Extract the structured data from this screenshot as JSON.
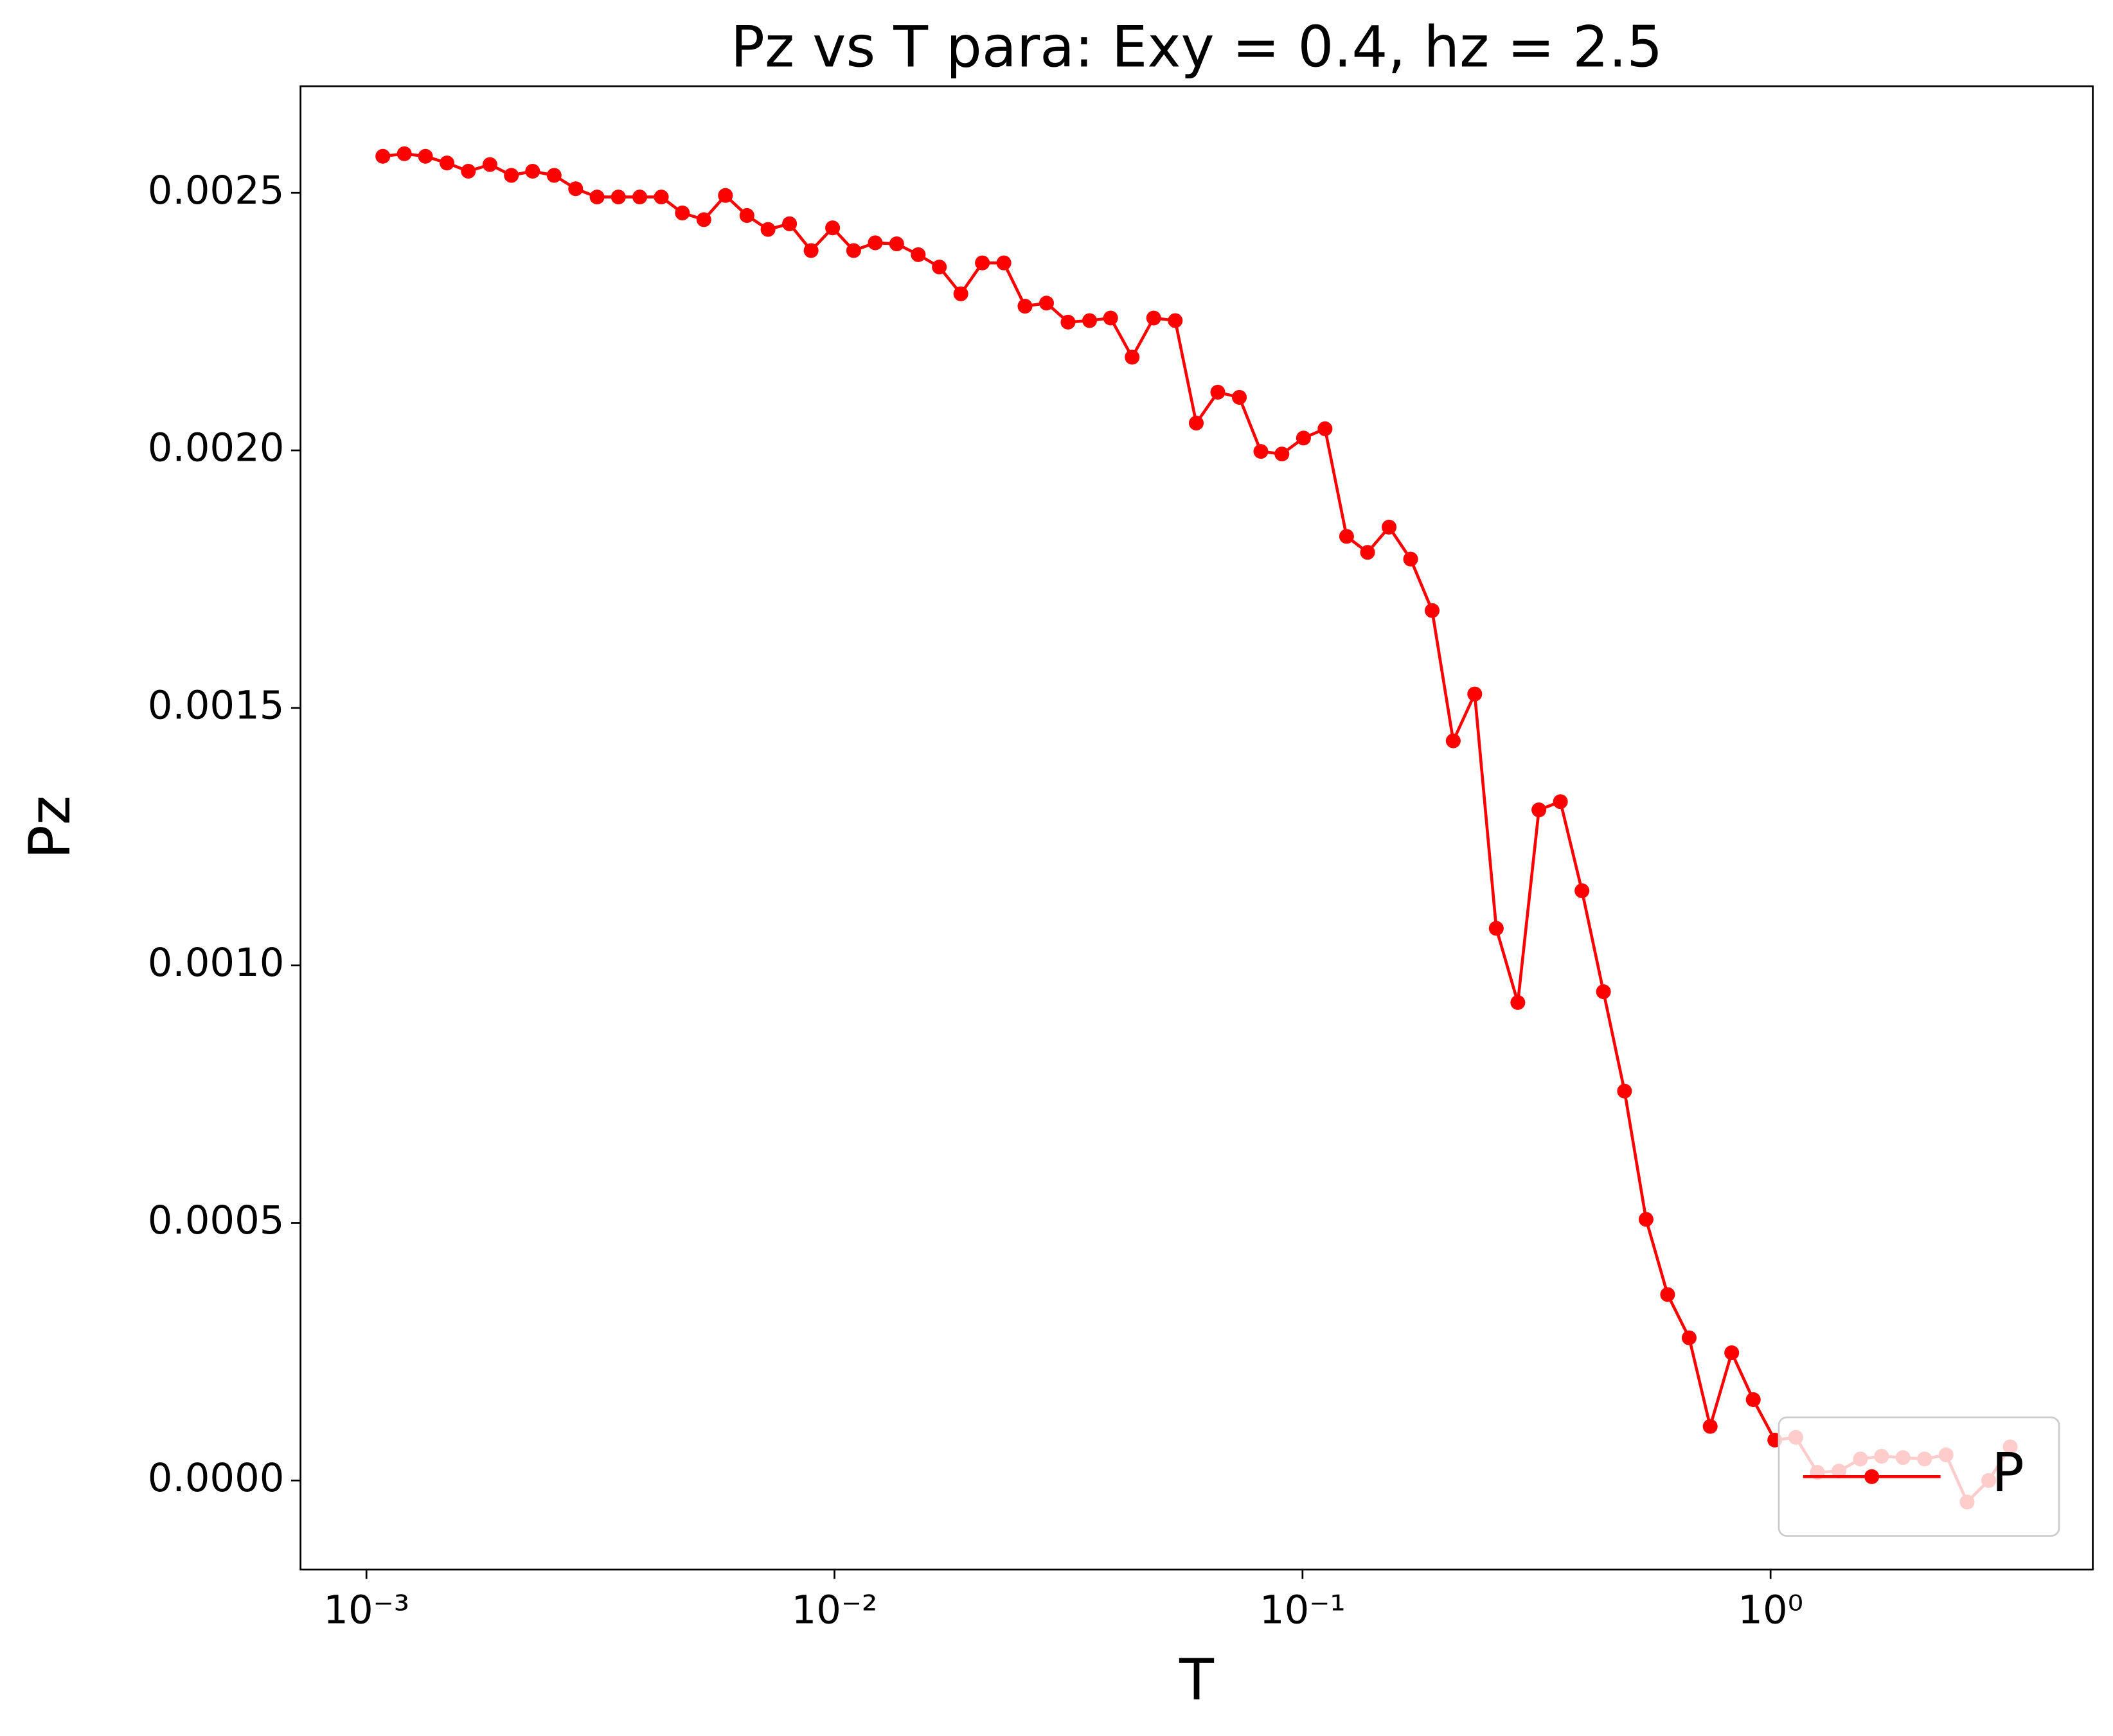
{
  "chart_data": {
    "type": "line",
    "title": "Pz vs T para: Exy = 0.4, hz = 2.5",
    "x_label": "T",
    "y_label": "Pz",
    "x_scale": "log",
    "legend": "lower right",
    "xlim": [
      0.000723,
      4.88
    ],
    "ylim": [
      -0.000173,
      0.002707
    ],
    "xticks": [
      {
        "value": 0.001,
        "label": "10⁻³"
      },
      {
        "value": 0.01,
        "label": "10⁻²"
      },
      {
        "value": 0.1,
        "label": "10⁻¹"
      },
      {
        "value": 1,
        "label": "10⁰"
      }
    ],
    "yticks": [
      {
        "value": 0,
        "label": "0.0000"
      },
      {
        "value": 0.0005,
        "label": "0.0005"
      },
      {
        "value": 0.001,
        "label": "0.0010"
      },
      {
        "value": 0.0015,
        "label": "0.0015"
      },
      {
        "value": 0.002,
        "label": "0.0020"
      },
      {
        "value": 0.0025,
        "label": "0.0025"
      }
    ],
    "x": [
      0.001084,
      0.001205,
      0.001337,
      0.001486,
      0.001651,
      0.001836,
      0.00204,
      0.002265,
      0.002518,
      0.002799,
      0.00311,
      0.003454,
      0.003837,
      0.004266,
      0.004732,
      0.00526,
      0.005848,
      0.006501,
      0.007211,
      0.008017,
      0.008913,
      0.009908,
      0.01099,
      0.01222,
      0.01358,
      0.0151,
      0.01675,
      0.01862,
      0.0207,
      0.02301,
      0.02553,
      0.02838,
      0.03155,
      0.03508,
      0.0389,
      0.04325,
      0.04808,
      0.05346,
      0.05929,
      0.06592,
      0.07328,
      0.08147,
      0.09036,
      0.1005,
      0.1117,
      0.1242,
      0.1377,
      0.1531,
      0.1702,
      0.1892,
      0.2099,
      0.2333,
      0.2594,
      0.2884,
      0.3199,
      0.3556,
      0.3954,
      0.4395,
      0.4875,
      0.542,
      0.6026,
      0.6699,
      0.743,
      0.826,
      0.9183,
      1.021,
      1.132,
      1.259,
      1.4,
      1.556,
      1.726,
      1.919,
      2.133,
      2.371,
      2.63,
      2.924,
      3.251
    ],
    "series": [
      {
        "name": "P",
        "color": "#ff0000",
        "values": [
          0.002571,
          0.002576,
          0.002571,
          0.002558,
          0.002542,
          0.002555,
          0.002534,
          0.002542,
          0.002534,
          0.002508,
          0.002492,
          0.002492,
          0.002492,
          0.002492,
          0.002461,
          0.002448,
          0.002495,
          0.002456,
          0.002429,
          0.00244,
          0.002388,
          0.002432,
          0.002388,
          0.002403,
          0.002401,
          0.00238,
          0.002356,
          0.002304,
          0.002364,
          0.002364,
          0.00228,
          0.002286,
          0.002249,
          0.002252,
          0.002257,
          0.002181,
          0.002257,
          0.002252,
          0.002053,
          0.002113,
          0.002103,
          0.001998,
          0.001993,
          0.002024,
          0.002042,
          0.001833,
          0.001802,
          0.001851,
          0.001789,
          0.001689,
          0.001436,
          0.001527,
          0.001072,
          0.000928,
          0.001302,
          0.001318,
          0.001145,
          0.000949,
          0.000756,
          0.000507,
          0.000361,
          0.000277,
          0.000105,
          0.000248,
          0.000157,
          7.85e-05,
          8.37e-05,
          1.57e-05,
          1.83e-05,
          4.18e-05,
          4.71e-05,
          4.45e-05,
          4.18e-05,
          4.97e-05,
          -4.18e-05,
          0,
          6.54e-05
        ]
      }
    ]
  }
}
